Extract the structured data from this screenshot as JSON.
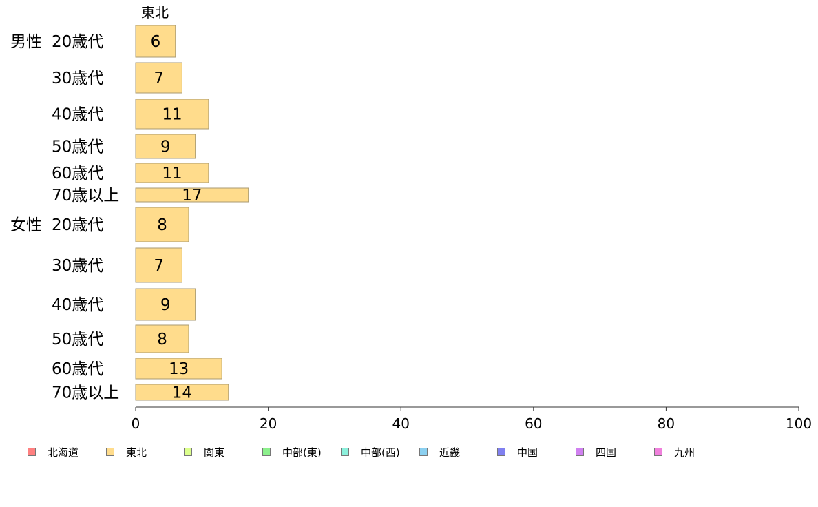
{
  "chart_data": {
    "type": "bar",
    "orientation": "horizontal",
    "title": "東北",
    "groups": [
      {
        "label": "男性",
        "categories": [
          "20歳代",
          "30歳代",
          "40歳代",
          "50歳代",
          "60歳代",
          "70歳以上"
        ],
        "values": [
          6,
          7,
          11,
          9,
          11,
          17
        ]
      },
      {
        "label": "女性",
        "categories": [
          "20歳代",
          "30歳代",
          "40歳代",
          "50歳代",
          "60歳代",
          "70歳以上"
        ],
        "values": [
          8,
          7,
          9,
          8,
          13,
          14
        ]
      }
    ],
    "xlim": [
      0,
      100
    ],
    "xticks": [
      "0",
      "20",
      "40",
      "60",
      "80",
      "100"
    ],
    "bar_color": "#ffdc8c",
    "bar_edge_color": "#a89a72",
    "grid": false,
    "legend_position": "bottom",
    "legend": [
      {
        "name": "北海道",
        "color": "#ff8080"
      },
      {
        "name": "東北",
        "color": "#ffdc8c"
      },
      {
        "name": "関東",
        "color": "#dcff8c"
      },
      {
        "name": "中部(東)",
        "color": "#8cf08c"
      },
      {
        "name": "中部(西)",
        "color": "#8cf0dc"
      },
      {
        "name": "近畿",
        "color": "#8cd0f0"
      },
      {
        "name": "中国",
        "color": "#8080f0"
      },
      {
        "name": "四国",
        "color": "#d080f0"
      },
      {
        "name": "九州",
        "color": "#f080dc"
      }
    ]
  }
}
